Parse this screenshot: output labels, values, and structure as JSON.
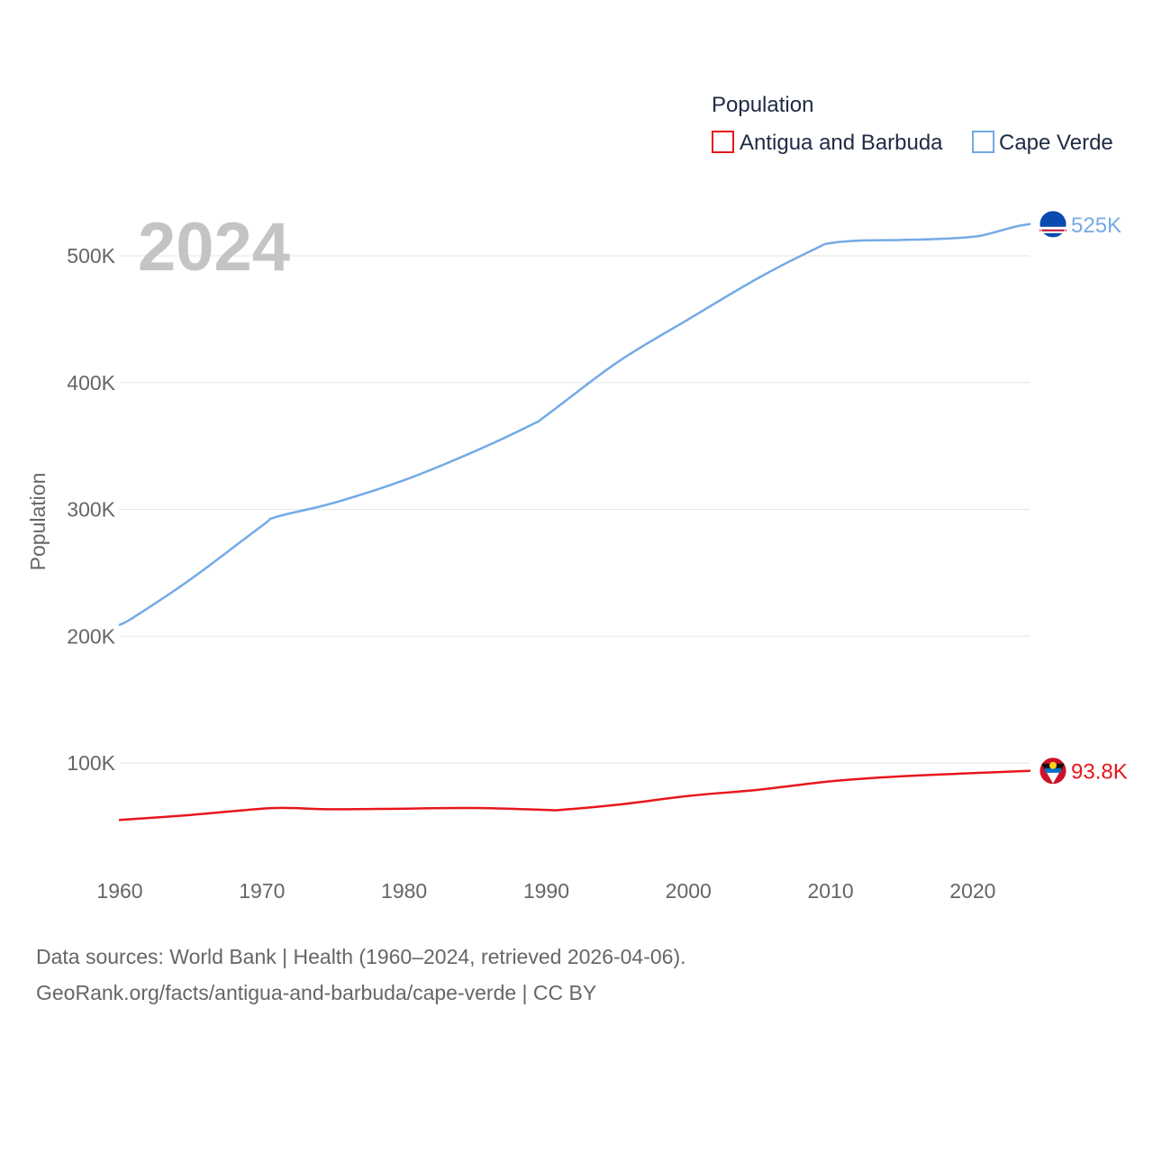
{
  "chart_data": {
    "type": "line",
    "year_label": "2024",
    "ylabel": "Population",
    "xlabel": "",
    "xlim": [
      1960,
      2024
    ],
    "ylim": [
      0,
      530000
    ],
    "x_ticks": [
      1960,
      1970,
      1980,
      1990,
      2000,
      2010,
      2020
    ],
    "y_ticks": [
      {
        "value": 100000,
        "label": "100K"
      },
      {
        "value": 200000,
        "label": "200K"
      },
      {
        "value": 300000,
        "label": "300K"
      },
      {
        "value": 400000,
        "label": "400K"
      },
      {
        "value": 500000,
        "label": "500K"
      }
    ],
    "legend": {
      "title": "Population",
      "position": "top-right"
    },
    "series": [
      {
        "name": "Antigua and Barbuda",
        "color": "#e8161b",
        "end_label": "93.8K",
        "flag_icon": "antigua-and-barbuda-flag-icon",
        "points": [
          [
            1960,
            55000
          ],
          [
            1965,
            59000
          ],
          [
            1970,
            64000
          ],
          [
            1972,
            64500
          ],
          [
            1975,
            63500
          ],
          [
            1980,
            64000
          ],
          [
            1985,
            64500
          ],
          [
            1990,
            63000
          ],
          [
            1991,
            63000
          ],
          [
            1995,
            67000
          ],
          [
            2000,
            74000
          ],
          [
            2005,
            79000
          ],
          [
            2010,
            85500
          ],
          [
            2015,
            89500
          ],
          [
            2020,
            92000
          ],
          [
            2024,
            93800
          ]
        ]
      },
      {
        "name": "Cape Verde",
        "color": "#74aae6",
        "end_label": "525K",
        "flag_icon": "cape-verde-flag-icon",
        "points": [
          [
            1960,
            209000
          ],
          [
            1961,
            215000
          ],
          [
            1965,
            245000
          ],
          [
            1970,
            287000
          ],
          [
            1971,
            294000
          ],
          [
            1975,
            305000
          ],
          [
            1980,
            323000
          ],
          [
            1985,
            346000
          ],
          [
            1989,
            367000
          ],
          [
            1990,
            374000
          ],
          [
            1995,
            416000
          ],
          [
            2000,
            450000
          ],
          [
            2005,
            483000
          ],
          [
            2009,
            506000
          ],
          [
            2010,
            510000
          ],
          [
            2012,
            512000
          ],
          [
            2015,
            512500
          ],
          [
            2018,
            513500
          ],
          [
            2020,
            515000
          ],
          [
            2021,
            517000
          ],
          [
            2023,
            523000
          ],
          [
            2024,
            525000
          ]
        ]
      }
    ]
  },
  "footer": {
    "line1": "Data sources: World Bank | Health (1960–2024, retrieved 2026-04-06).",
    "line2": "GeoRank.org/facts/antigua-and-barbuda/cape-verde | CC BY"
  }
}
